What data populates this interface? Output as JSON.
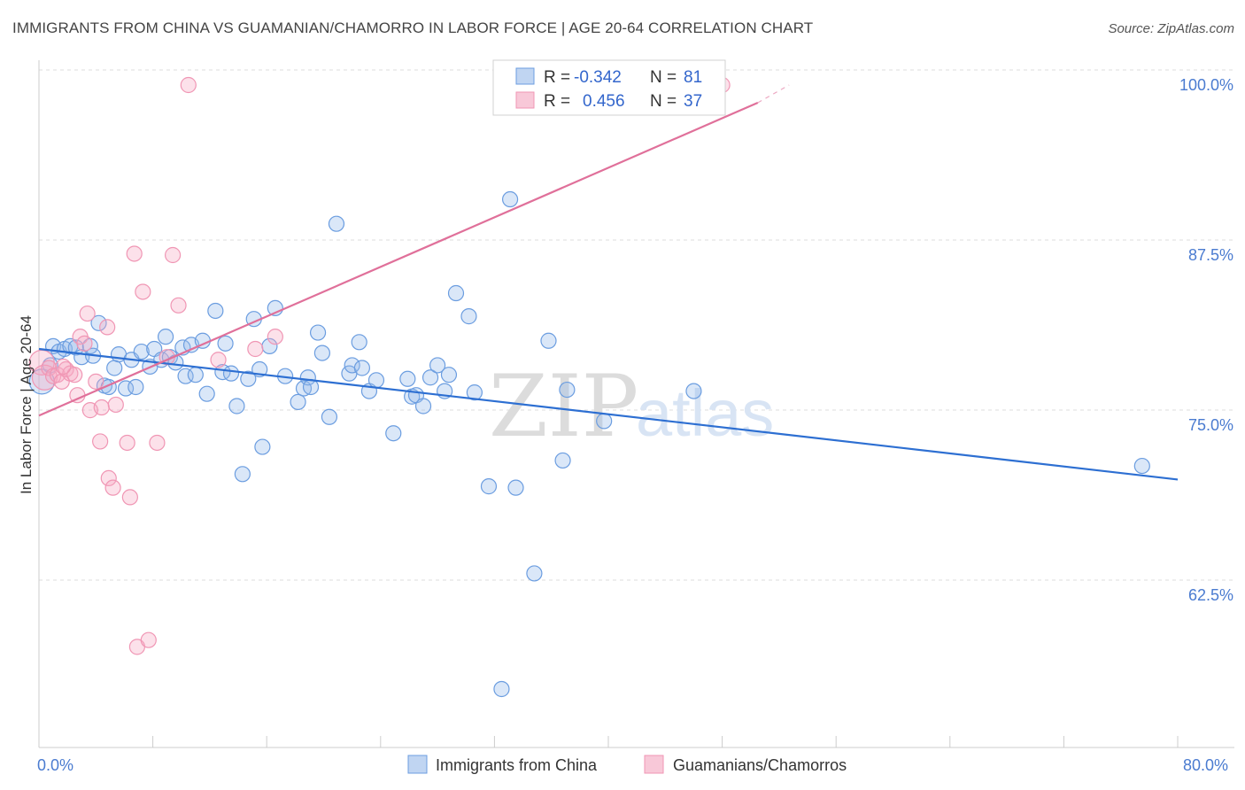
{
  "header": {
    "title": "IMMIGRANTS FROM CHINA VS GUAMANIAN/CHAMORRO IN LABOR FORCE | AGE 20-64 CORRELATION CHART",
    "source": "Source: ZipAtlas.com"
  },
  "watermark": {
    "zip": "ZIP",
    "atlas": "atlas"
  },
  "legend_box": {
    "rows": [
      {
        "r_label": "R =",
        "r_value": "-0.342",
        "n_label": "N =",
        "n_value": "81"
      },
      {
        "r_label": "R =",
        "r_value": "0.456",
        "n_label": "N =",
        "n_value": "37"
      }
    ]
  },
  "chart_data": {
    "type": "scatter",
    "title": "IMMIGRANTS FROM CHINA VS GUAMANIAN/CHAMORRO IN LABOR FORCE | AGE 20-64 CORRELATION CHART",
    "xlabel": "",
    "ylabel": "In Labor Force | Age 20-64",
    "xlim": [
      0,
      80
    ],
    "ylim": [
      52.5,
      103
    ],
    "x_tick_labels": [
      "0.0%",
      "80.0%"
    ],
    "y_ticks": [
      62.5,
      75.0,
      87.5,
      100.0
    ],
    "y_tick_labels": [
      "62.5%",
      "75.0%",
      "87.5%",
      "100.0%"
    ],
    "grid": "horizontal dashed",
    "legend_position": "bottom",
    "colors": {
      "china": "#6b9de0",
      "guam": "#f096b4",
      "china_line": "#2d6fd2",
      "guam_line": "#e0709a"
    },
    "series": [
      {
        "name": "Immigrants from China",
        "key": "china",
        "points": [
          [
            0.2,
            78.2
          ],
          [
            0.8,
            79.4
          ],
          [
            1.0,
            80.8
          ],
          [
            1.4,
            80.4
          ],
          [
            1.8,
            80.6
          ],
          [
            2.2,
            80.8
          ],
          [
            2.6,
            80.7
          ],
          [
            3.0,
            80.0
          ],
          [
            3.6,
            80.8
          ],
          [
            3.8,
            80.1
          ],
          [
            4.2,
            82.5
          ],
          [
            4.6,
            77.9
          ],
          [
            4.9,
            77.8
          ],
          [
            5.3,
            79.2
          ],
          [
            5.6,
            80.2
          ],
          [
            6.1,
            77.7
          ],
          [
            6.5,
            79.8
          ],
          [
            6.8,
            77.8
          ],
          [
            7.2,
            80.4
          ],
          [
            7.8,
            79.3
          ],
          [
            8.1,
            80.6
          ],
          [
            8.6,
            79.8
          ],
          [
            8.9,
            81.5
          ],
          [
            9.2,
            80.0
          ],
          [
            9.6,
            79.6
          ],
          [
            10.1,
            80.7
          ],
          [
            10.3,
            78.6
          ],
          [
            10.7,
            80.9
          ],
          [
            11.0,
            78.7
          ],
          [
            11.5,
            81.2
          ],
          [
            11.8,
            77.3
          ],
          [
            12.4,
            83.4
          ],
          [
            12.9,
            78.9
          ],
          [
            13.1,
            81.0
          ],
          [
            13.5,
            78.8
          ],
          [
            13.9,
            76.4
          ],
          [
            14.3,
            71.4
          ],
          [
            14.7,
            78.4
          ],
          [
            15.1,
            82.8
          ],
          [
            15.5,
            79.1
          ],
          [
            15.7,
            73.4
          ],
          [
            16.2,
            80.8
          ],
          [
            16.6,
            83.6
          ],
          [
            17.3,
            78.6
          ],
          [
            18.2,
            76.7
          ],
          [
            18.6,
            77.7
          ],
          [
            18.9,
            78.5
          ],
          [
            19.1,
            77.8
          ],
          [
            19.6,
            81.8
          ],
          [
            19.9,
            80.3
          ],
          [
            20.4,
            75.6
          ],
          [
            20.9,
            89.8
          ],
          [
            21.8,
            78.8
          ],
          [
            22.0,
            79.4
          ],
          [
            22.5,
            81.1
          ],
          [
            22.7,
            79.2
          ],
          [
            23.2,
            77.5
          ],
          [
            23.7,
            78.3
          ],
          [
            24.9,
            74.4
          ],
          [
            25.9,
            78.4
          ],
          [
            26.2,
            77.1
          ],
          [
            26.5,
            77.2
          ],
          [
            27.0,
            76.4
          ],
          [
            27.5,
            78.5
          ],
          [
            28.0,
            79.4
          ],
          [
            28.5,
            77.5
          ],
          [
            28.8,
            78.7
          ],
          [
            29.3,
            84.7
          ],
          [
            30.2,
            83.0
          ],
          [
            30.6,
            77.4
          ],
          [
            31.6,
            70.5
          ],
          [
            32.5,
            55.6
          ],
          [
            33.1,
            91.6
          ],
          [
            33.5,
            70.4
          ],
          [
            34.8,
            64.1
          ],
          [
            35.8,
            81.2
          ],
          [
            36.8,
            72.4
          ],
          [
            37.1,
            77.6
          ],
          [
            39.7,
            75.3
          ],
          [
            46.0,
            77.5
          ],
          [
            77.5,
            72.0
          ]
        ]
      },
      {
        "name": "Guamanians/Chamorros",
        "key": "guam",
        "points": [
          [
            0.2,
            79.6
          ],
          [
            0.4,
            78.5
          ],
          [
            0.7,
            79.2
          ],
          [
            1.0,
            78.6
          ],
          [
            1.3,
            78.7
          ],
          [
            1.6,
            78.2
          ],
          [
            1.9,
            79.1
          ],
          [
            2.2,
            78.8
          ],
          [
            2.5,
            78.7
          ],
          [
            2.7,
            77.2
          ],
          [
            2.9,
            81.5
          ],
          [
            3.2,
            81.0
          ],
          [
            3.4,
            83.2
          ],
          [
            3.6,
            76.1
          ],
          [
            4.0,
            78.2
          ],
          [
            4.4,
            76.3
          ],
          [
            4.8,
            82.2
          ],
          [
            4.9,
            71.1
          ],
          [
            5.2,
            70.4
          ],
          [
            5.4,
            76.5
          ],
          [
            4.3,
            73.8
          ],
          [
            6.2,
            73.7
          ],
          [
            6.4,
            69.7
          ],
          [
            6.7,
            87.6
          ],
          [
            6.9,
            58.7
          ],
          [
            7.3,
            84.8
          ],
          [
            7.7,
            59.2
          ],
          [
            8.3,
            73.7
          ],
          [
            9.4,
            87.5
          ],
          [
            9.8,
            83.8
          ],
          [
            10.5,
            100.0
          ],
          [
            15.2,
            80.6
          ],
          [
            16.6,
            81.5
          ],
          [
            9.0,
            80.0
          ],
          [
            12.6,
            79.8
          ],
          [
            1.7,
            79.3
          ],
          [
            48.0,
            100.0
          ]
        ]
      }
    ],
    "trend_lines": [
      {
        "series": "Immigrants from China",
        "x": [
          0,
          80
        ],
        "y": [
          80.6,
          71.0
        ]
      },
      {
        "series": "Guamanians/Chamorros",
        "x": [
          0,
          50.5
        ],
        "y": [
          75.7,
          98.7
        ],
        "dashed_extension_to": [
          52.7,
          100.0
        ]
      }
    ]
  },
  "bottom_legend": {
    "items": [
      {
        "label": "Immigrants from China"
      },
      {
        "label": "Guamanians/Chamorros"
      }
    ]
  }
}
